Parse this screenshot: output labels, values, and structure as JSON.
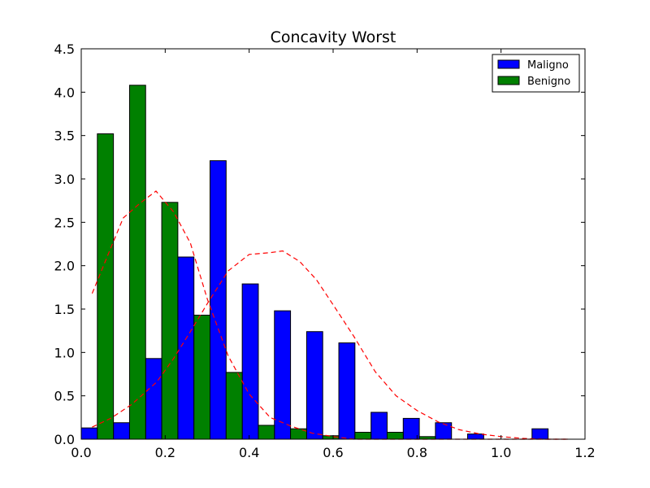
{
  "chart_data": {
    "type": "bar",
    "title": "Concavity Worst",
    "xlabel": "",
    "ylabel": "",
    "xlim": [
      0.0,
      1.2
    ],
    "ylim": [
      0.0,
      4.5
    ],
    "xticks": [
      "0.0",
      "0.2",
      "0.4",
      "0.6",
      "0.8",
      "1.0",
      "1.2"
    ],
    "yticks": [
      "0.0",
      "0.5",
      "1.0",
      "1.5",
      "2.0",
      "2.5",
      "3.0",
      "3.5",
      "4.0",
      "4.5"
    ],
    "grid": false,
    "legend_position": "top-right",
    "bin_edges": [
      0.0,
      0.0767,
      0.1534,
      0.2301,
      0.3068,
      0.3835,
      0.4602,
      0.5369,
      0.6136,
      0.6903,
      0.767,
      0.8437,
      0.9204,
      0.9971,
      1.0738,
      1.1505
    ],
    "series": [
      {
        "name": "Maligno",
        "color": "#0000ff",
        "values": [
          0.13,
          0.19,
          0.93,
          2.1,
          3.21,
          1.79,
          1.48,
          1.24,
          1.11,
          0.31,
          0.24,
          0.19,
          0.06,
          0.0,
          0.12
        ]
      },
      {
        "name": "Benigno",
        "color": "#008000",
        "values": [
          3.52,
          4.08,
          2.73,
          1.43,
          0.77,
          0.16,
          0.12,
          0.04,
          0.08,
          0.08,
          0.03,
          0.0,
          0.0,
          0.0,
          0.0
        ]
      }
    ],
    "fit_curves": [
      {
        "color": "#ff0000",
        "style": "dashed",
        "x": [
          0.026,
          0.07,
          0.1,
          0.14,
          0.178,
          0.22,
          0.26,
          0.3,
          0.35,
          0.4,
          0.45,
          0.5,
          0.55,
          0.6,
          0.65,
          0.7,
          0.75,
          0.8,
          0.85,
          0.9,
          0.95,
          1.0,
          1.05,
          1.1,
          1.16
        ],
        "y": [
          1.68,
          2.2,
          2.55,
          2.72,
          2.86,
          2.62,
          2.26,
          1.62,
          0.96,
          0.52,
          0.25,
          0.15,
          0.07,
          0.03,
          0.0,
          0.0,
          0.0,
          0.0,
          0.0,
          0.0,
          0.0,
          0.0,
          0.0,
          0.0,
          0.0
        ]
      },
      {
        "color": "#ff0000",
        "style": "dashed",
        "x": [
          0.026,
          0.07,
          0.12,
          0.18,
          0.22,
          0.26,
          0.3,
          0.35,
          0.4,
          0.45,
          0.48,
          0.52,
          0.56,
          0.6,
          0.65,
          0.7,
          0.75,
          0.8,
          0.85,
          0.9,
          0.95,
          1.0,
          1.05,
          1.1,
          1.16
        ],
        "y": [
          0.14,
          0.24,
          0.4,
          0.66,
          0.93,
          1.24,
          1.56,
          1.94,
          2.13,
          2.15,
          2.17,
          2.05,
          1.84,
          1.55,
          1.18,
          0.78,
          0.5,
          0.33,
          0.2,
          0.11,
          0.06,
          0.03,
          0.01,
          0.0,
          0.0
        ]
      }
    ]
  }
}
